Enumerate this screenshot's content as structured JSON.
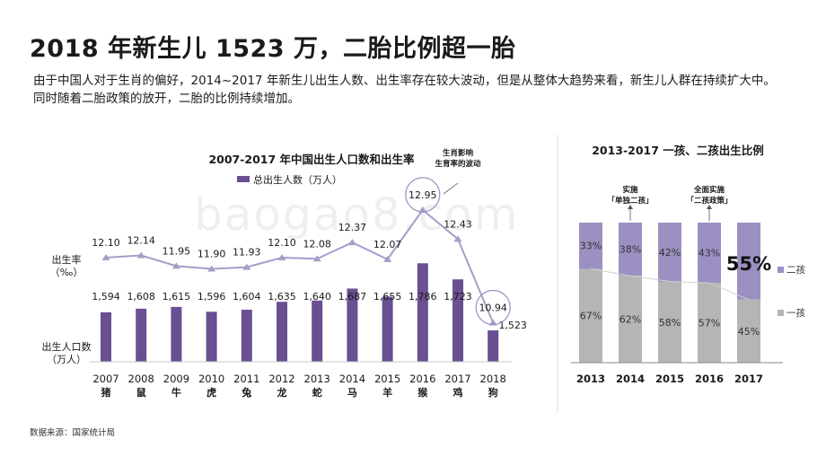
{
  "header": {
    "title": "2018 年新生儿 1523 万，二胎比例超一胎",
    "description": "由于中国人对于生肖的偏好，2014~2017 年新生儿出生人数、出生率存在较大波动，但是从整体大趋势来看，新生儿人群在持续扩大中。同时随着二胎政策的放开，二胎的比例持续增加。"
  },
  "source": "数据来源：国家统计局",
  "watermark": "baogao8.com",
  "colors": {
    "bar": "#6a4f92",
    "line": "#a89cc8",
    "second_child": "#9c8fc2",
    "first_child": "#b5b5b5",
    "circle": "#9c8fc2",
    "text": "#1a1a1a"
  },
  "chart_data": [
    {
      "type": "bar",
      "title": "2007-2017 年中国出生人口数和出生率",
      "legend": "总出生人数（万人）",
      "categories": [
        "2007",
        "2008",
        "2009",
        "2010",
        "2011",
        "2012",
        "2013",
        "2014",
        "2015",
        "2016",
        "2017",
        "2018"
      ],
      "zodiac": [
        "猪",
        "鼠",
        "牛",
        "虎",
        "兔",
        "龙",
        "蛇",
        "马",
        "羊",
        "猴",
        "鸡",
        "狗"
      ],
      "births": [
        1594,
        1608,
        1615,
        1596,
        1604,
        1635,
        1640,
        1687,
        1655,
        1786,
        1723,
        1523
      ],
      "births_labels": [
        "1,594",
        "1,608",
        "1,615",
        "1,596",
        "1,604",
        "1,635",
        "1,640",
        "1,687",
        "1,655",
        "1,786",
        "1,723",
        "1,523"
      ],
      "birth_rate": [
        12.1,
        12.14,
        11.95,
        11.9,
        11.93,
        12.1,
        12.08,
        12.37,
        12.07,
        12.95,
        12.43,
        10.94
      ],
      "birth_rate_labels": [
        "12.10",
        "12.14",
        "11.95",
        "11.90",
        "11.93",
        "12.10",
        "12.08",
        "12.37",
        "12.07",
        "12.95",
        "12.43",
        "10.94"
      ],
      "rate_axis_label": [
        "出生率",
        "（‰）"
      ],
      "births_axis_label": [
        "出生人口数",
        "（万人）"
      ],
      "annotation": [
        "生肖影响",
        "生育率的波动"
      ],
      "highlighted": [
        "2016",
        "2018"
      ]
    },
    {
      "type": "bar",
      "stacked": true,
      "title": "2013-2017 一孩、二孩出生比例",
      "categories": [
        "2013",
        "2014",
        "2015",
        "2016",
        "2017"
      ],
      "series": [
        {
          "name": "一孩",
          "values": [
            67,
            62,
            58,
            57,
            45
          ],
          "labels": [
            "67%",
            "62%",
            "58%",
            "57%",
            "45%"
          ]
        },
        {
          "name": "二孩",
          "values": [
            33,
            38,
            42,
            43,
            55
          ],
          "labels": [
            "33%",
            "38%",
            "42%",
            "43%",
            "55%"
          ]
        }
      ],
      "ylim": [
        0,
        100
      ],
      "policy_notes": [
        {
          "year": "2014",
          "lines": [
            "实施",
            "「单独二孩」"
          ]
        },
        {
          "year": "2016",
          "lines": [
            "全面实施",
            "「二孩政策」"
          ]
        }
      ]
    }
  ]
}
